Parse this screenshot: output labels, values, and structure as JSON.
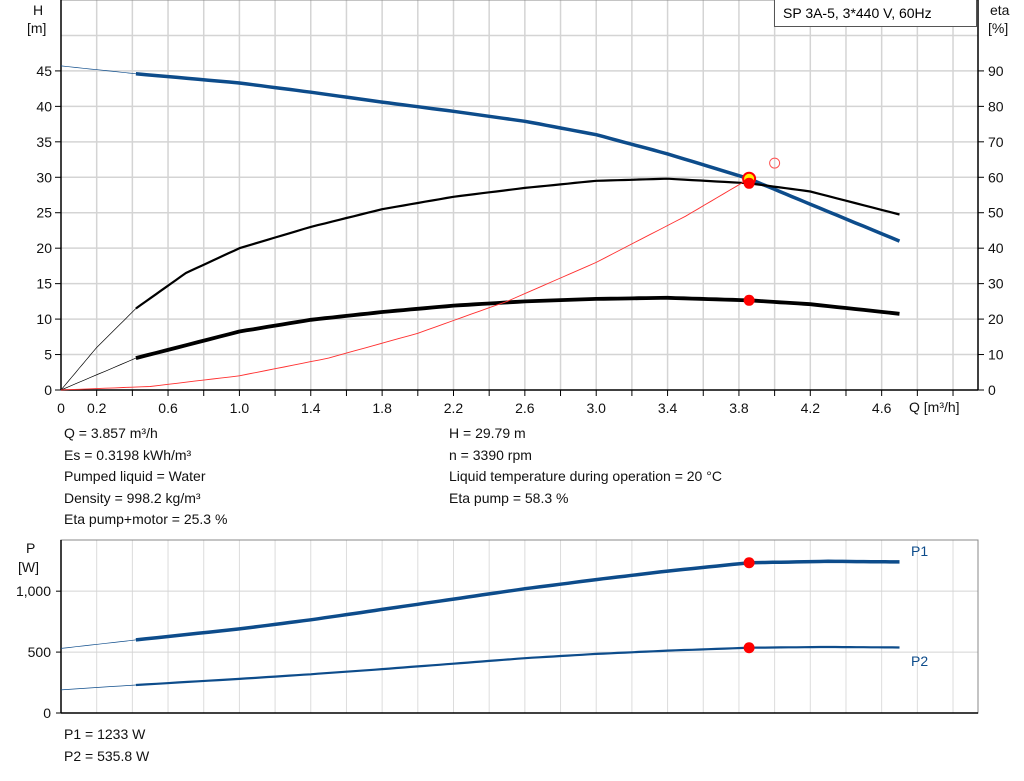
{
  "chart_data": [
    {
      "type": "line",
      "title": "SP 3A-5, 3*440 V, 60Hz",
      "xlabel": "Q [m³/h]",
      "ylabel": "H [m]",
      "y2label": "eta [%]",
      "xlim": [
        0,
        5.14
      ],
      "ylim": [
        0,
        55
      ],
      "y2lim": [
        0,
        110
      ],
      "grid": true,
      "xticks": [
        "0",
        "0.2",
        "0.6",
        "1.0",
        "1.4",
        "1.8",
        "2.2",
        "2.6",
        "3.0",
        "3.4",
        "3.8",
        "4.2",
        "4.6"
      ],
      "xtick_values": [
        0,
        0.2,
        0.6,
        1.0,
        1.4,
        1.8,
        2.2,
        2.6,
        3.0,
        3.4,
        3.8,
        4.2,
        4.6
      ],
      "yticks": [
        0,
        5,
        10,
        15,
        20,
        25,
        30,
        35,
        40,
        45
      ],
      "y2ticks": [
        0,
        10,
        20,
        30,
        40,
        50,
        60,
        70,
        80,
        90
      ],
      "series": [
        {
          "axis": "y",
          "color": "#0d4c8b",
          "x": [
            0,
            0.42,
            1.0,
            1.4,
            1.8,
            2.2,
            2.6,
            3.0,
            3.4,
            3.857,
            4.2,
            4.7
          ],
          "y": [
            45.7,
            44.6,
            43.3,
            42.0,
            40.6,
            39.3,
            37.9,
            36.0,
            33.3,
            29.79,
            26.2,
            21.0
          ]
        },
        {
          "axis": "y2",
          "color": "#000000",
          "x": [
            0,
            0.2,
            0.42,
            0.7,
            1.0,
            1.4,
            1.8,
            2.2,
            2.6,
            3.0,
            3.4,
            3.857,
            4.2,
            4.7
          ],
          "y": [
            0,
            12,
            23,
            33,
            40,
            46,
            51,
            54.5,
            57,
            59,
            59.6,
            58.3,
            56,
            49.5
          ]
        },
        {
          "axis": "y2",
          "color": "#000000",
          "x": [
            0,
            0.42,
            1.0,
            1.4,
            1.8,
            2.2,
            2.6,
            3.0,
            3.4,
            3.857,
            4.2,
            4.7
          ],
          "y": [
            0,
            9,
            16.5,
            19.8,
            22,
            23.8,
            25,
            25.7,
            26,
            25.3,
            24.2,
            21.5
          ]
        },
        {
          "axis": "y",
          "color": "#ff3030",
          "thin": true,
          "x": [
            0,
            0.5,
            1.0,
            1.5,
            2.0,
            2.5,
            3.0,
            3.5,
            3.857
          ],
          "y": [
            0,
            0.5,
            2.0,
            4.5,
            8.0,
            12.5,
            18.0,
            24.5,
            29.79
          ]
        }
      ],
      "duty_points": [
        {
          "q": 3.857,
          "h": 29.79,
          "eta_pump": 58.3,
          "eta_total": 25.3
        }
      ],
      "hollow_marker": {
        "q": 4.0,
        "eta": 64
      }
    },
    {
      "type": "line",
      "ylabel": "P [W]",
      "xlim": [
        0,
        5.14
      ],
      "ylim": [
        0,
        1420
      ],
      "grid": true,
      "yticks": [
        "0",
        "500",
        "1,000"
      ],
      "ytick_values": [
        0,
        500,
        1000
      ],
      "series": [
        {
          "name": "P1",
          "color": "#0d4c8b",
          "x": [
            0,
            0.42,
            1.0,
            1.4,
            1.8,
            2.2,
            2.6,
            3.0,
            3.4,
            3.857,
            4.3,
            4.7
          ],
          "y": [
            530,
            600,
            690,
            765,
            850,
            935,
            1020,
            1095,
            1165,
            1233,
            1245,
            1240
          ]
        },
        {
          "name": "P2",
          "color": "#0d4c8b",
          "x": [
            0,
            0.42,
            1.0,
            1.4,
            1.8,
            2.2,
            2.6,
            3.0,
            3.4,
            3.857,
            4.3,
            4.7
          ],
          "y": [
            190,
            230,
            280,
            318,
            360,
            405,
            450,
            485,
            512,
            535.8,
            542,
            538
          ]
        }
      ],
      "duty_points": [
        {
          "q": 3.857,
          "p1": 1233,
          "p2": 535.8
        }
      ]
    }
  ],
  "info": {
    "left": [
      "Q = 3.857 m³/h",
      "Es = 0.3198 kWh/m³",
      "Pumped liquid = Water",
      "Density = 998.2 kg/m³",
      "Eta pump+motor = 25.3 %"
    ],
    "right": [
      "H = 29.79 m",
      "n = 3390 rpm",
      "Liquid temperature during operation = 20 °C",
      "Eta pump = 58.3 %"
    ],
    "power": [
      "P1 = 1233 W",
      "P2 = 535.8 W"
    ]
  },
  "axis_labels": {
    "h": "H",
    "h_unit": "[m]",
    "eta": "eta",
    "eta_unit": "[%]",
    "q": "Q [m³/h]",
    "p": "P",
    "p_unit": "[W]",
    "p1": "P1",
    "p2": "P2"
  }
}
